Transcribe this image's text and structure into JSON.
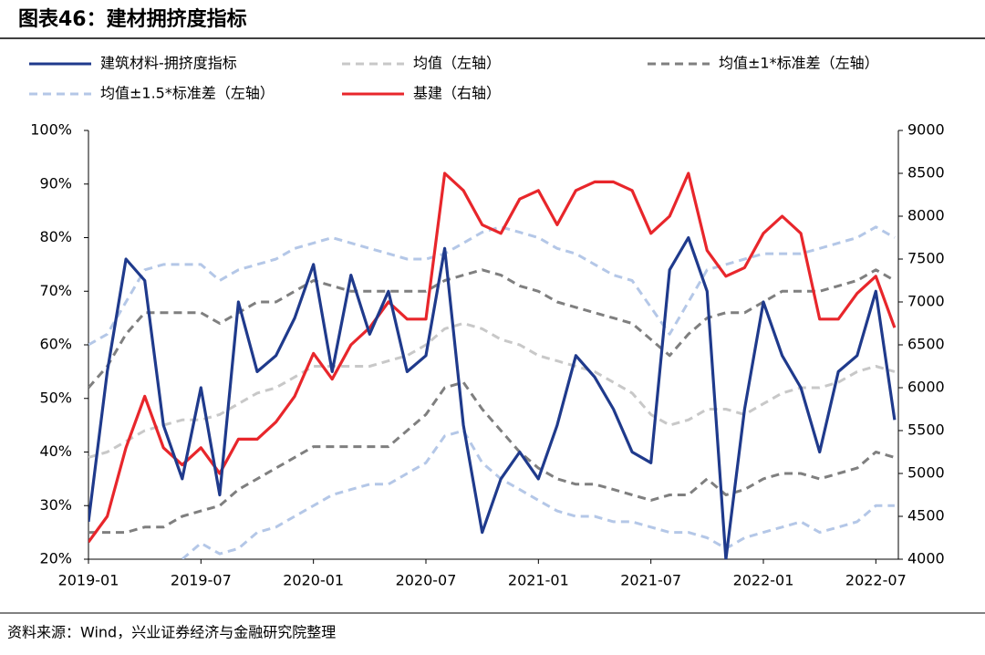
{
  "chart_data": {
    "type": "line",
    "title": "图表46：建材拥挤度指标",
    "source": "资料来源：Wind，兴业证券经济与金融研究院整理",
    "categories": [
      "2019-01",
      null,
      null,
      null,
      null,
      null,
      "2019-07",
      null,
      null,
      null,
      null,
      null,
      "2020-01",
      null,
      null,
      null,
      null,
      null,
      "2020-07",
      null,
      null,
      null,
      null,
      null,
      "2021-01",
      null,
      null,
      null,
      null,
      null,
      "2021-07",
      null,
      null,
      null,
      null,
      null,
      "2022-01",
      null,
      null,
      null,
      null,
      null,
      "2022-07",
      null
    ],
    "ylim": [
      20,
      100
    ],
    "yticks": [
      {
        "value": 20,
        "label": "20%"
      },
      {
        "value": 30,
        "label": "30%"
      },
      {
        "value": 40,
        "label": "40%"
      },
      {
        "value": 50,
        "label": "50%"
      },
      {
        "value": 60,
        "label": "60%"
      },
      {
        "value": 70,
        "label": "70%"
      },
      {
        "value": 80,
        "label": "80%"
      },
      {
        "value": 90,
        "label": "90%"
      },
      {
        "value": 100,
        "label": "100%"
      }
    ],
    "y2lim": [
      4000,
      9000
    ],
    "y2ticks": [
      4000,
      4500,
      5000,
      5500,
      6000,
      6500,
      7000,
      7500,
      8000,
      8500,
      9000
    ],
    "series": [
      {
        "name": "建筑材料-拥挤度指标",
        "color": "#1f3a8c",
        "style": "solid",
        "values": [
          27,
          55,
          76,
          72,
          45,
          35,
          52,
          32,
          68,
          55,
          58,
          65,
          75,
          55,
          73,
          62,
          70,
          55,
          58,
          78,
          45,
          25,
          35,
          40,
          35,
          45,
          58,
          54,
          48,
          40,
          38,
          74,
          80,
          70,
          20,
          48,
          68,
          58,
          52,
          40,
          55,
          58,
          70,
          46
        ]
      },
      {
        "name": "均值（左轴）",
        "color": "#c8c8c8",
        "style": "dashed",
        "values": [
          39,
          40,
          42,
          44,
          45,
          46,
          46,
          47,
          49,
          51,
          52,
          54,
          56,
          56,
          56,
          56,
          57,
          58,
          60,
          63,
          64,
          63,
          61,
          60,
          58,
          57,
          56,
          55,
          53,
          51,
          47,
          45,
          46,
          48,
          48,
          47,
          49,
          51,
          52,
          52,
          53,
          55,
          56,
          55
        ]
      },
      {
        "name": "均值±1*标准差（左轴）",
        "color": "#7f7f7f",
        "style": "dashed",
        "upper": [
          52,
          56,
          62,
          66,
          66,
          66,
          66,
          64,
          66,
          68,
          68,
          70,
          72,
          71,
          70,
          70,
          70,
          70,
          70,
          72,
          73,
          74,
          73,
          71,
          70,
          68,
          67,
          66,
          65,
          64,
          61,
          58,
          62,
          65,
          66,
          66,
          68,
          70,
          70,
          70,
          71,
          72,
          74,
          72
        ],
        "lower": [
          25,
          25,
          25,
          26,
          26,
          28,
          29,
          30,
          33,
          35,
          37,
          39,
          41,
          41,
          41,
          41,
          41,
          44,
          47,
          52,
          53,
          48,
          44,
          40,
          37,
          35,
          34,
          34,
          33,
          32,
          31,
          32,
          32,
          35,
          32,
          33,
          35,
          36,
          36,
          35,
          36,
          37,
          40,
          39
        ]
      },
      {
        "name": "均值±1.5*标准差（左轴）",
        "color": "#b4c7e7",
        "style": "dashed",
        "upper": [
          60,
          62,
          68,
          74,
          75,
          75,
          75,
          72,
          74,
          75,
          76,
          78,
          79,
          80,
          79,
          78,
          77,
          76,
          76,
          77,
          79,
          81,
          82,
          81,
          80,
          78,
          77,
          75,
          73,
          72,
          67,
          62,
          68,
          74,
          75,
          76,
          77,
          77,
          77,
          78,
          79,
          80,
          82,
          80
        ],
        "lower": [
          null,
          null,
          null,
          null,
          null,
          20,
          23,
          21,
          22,
          25,
          26,
          28,
          30,
          32,
          33,
          34,
          34,
          36,
          38,
          43,
          44,
          38,
          35,
          33,
          31,
          29,
          28,
          28,
          27,
          27,
          26,
          25,
          25,
          24,
          22,
          24,
          25,
          26,
          27,
          25,
          26,
          27,
          30,
          30
        ]
      },
      {
        "name": "基建（右轴）",
        "color": "#e8262b",
        "style": "solid",
        "axis": "y2",
        "values": [
          4200,
          4500,
          5300,
          5900,
          5300,
          5100,
          5300,
          5000,
          5400,
          5400,
          5600,
          5900,
          6400,
          6100,
          6500,
          6700,
          7000,
          6800,
          6800,
          8500,
          8300,
          7900,
          7800,
          8200,
          8300,
          7900,
          8300,
          8400,
          8400,
          8300,
          7800,
          8000,
          8500,
          7600,
          7300,
          7400,
          7800,
          8000,
          7800,
          6800,
          6800,
          7100,
          7300,
          6700
        ]
      }
    ]
  }
}
